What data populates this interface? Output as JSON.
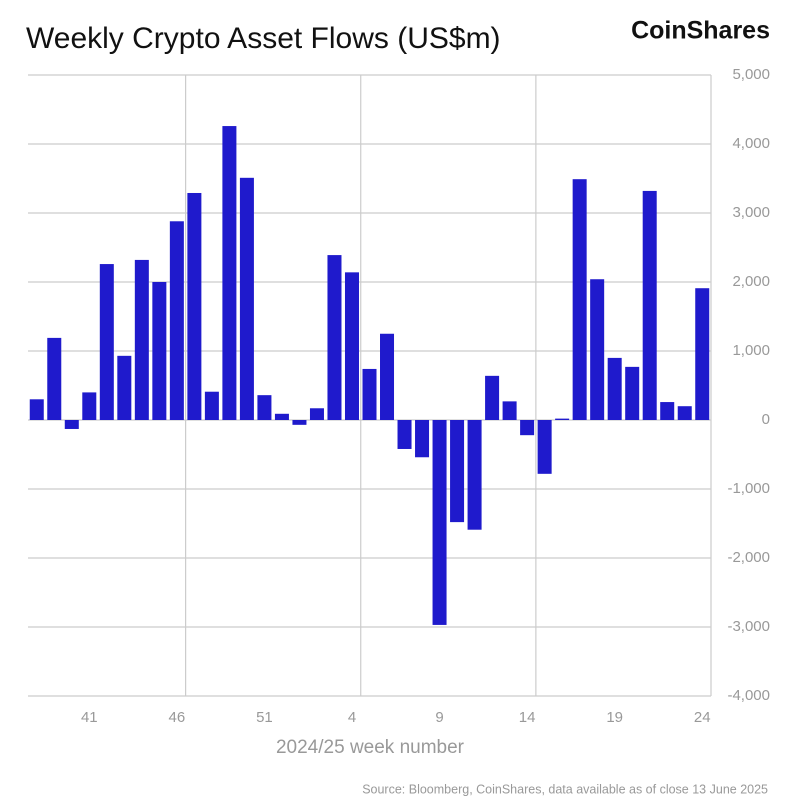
{
  "chart_data": {
    "type": "bar",
    "title": "Weekly Crypto Asset Flows (US$m)",
    "brand": "CoinShares",
    "xlabel": "2024/25 week number",
    "source": "Source: Bloomberg, CoinShares, data available as of close 13 June 2025",
    "categories": [
      null,
      null,
      null,
      "41",
      null,
      null,
      null,
      null,
      "46",
      null,
      null,
      null,
      null,
      "51",
      null,
      null,
      null,
      null,
      "4",
      null,
      null,
      null,
      null,
      "9",
      null,
      null,
      null,
      null,
      "14",
      null,
      null,
      null,
      null,
      "19",
      null,
      null,
      null,
      null,
      "24"
    ],
    "values": [
      300,
      1190,
      -130,
      400,
      2260,
      930,
      2320,
      2000,
      2880,
      3290,
      410,
      4260,
      3510,
      360,
      90,
      -70,
      170,
      2390,
      2140,
      740,
      1250,
      -420,
      -540,
      -2970,
      -1480,
      -1590,
      640,
      270,
      -220,
      -780,
      20,
      3490,
      2040,
      900,
      770,
      3320,
      260,
      200,
      1910
    ],
    "color": "#1f1acc",
    "ylim": [
      -4000,
      5000
    ],
    "yticks": [
      {
        "value": -4000,
        "label": "-4,000"
      },
      {
        "value": -3000,
        "label": "-3,000"
      },
      {
        "value": -2000,
        "label": "-2,000"
      },
      {
        "value": -1000,
        "label": "-1,000"
      },
      0,
      {
        "value": 1000,
        "label": "1,000"
      },
      {
        "value": 2000,
        "label": "2,000"
      },
      {
        "value": 3000,
        "label": "3,000"
      },
      {
        "value": 4000,
        "label": "4,000"
      },
      {
        "value": 5000,
        "label": "5,000"
      }
    ],
    "grid": true
  }
}
